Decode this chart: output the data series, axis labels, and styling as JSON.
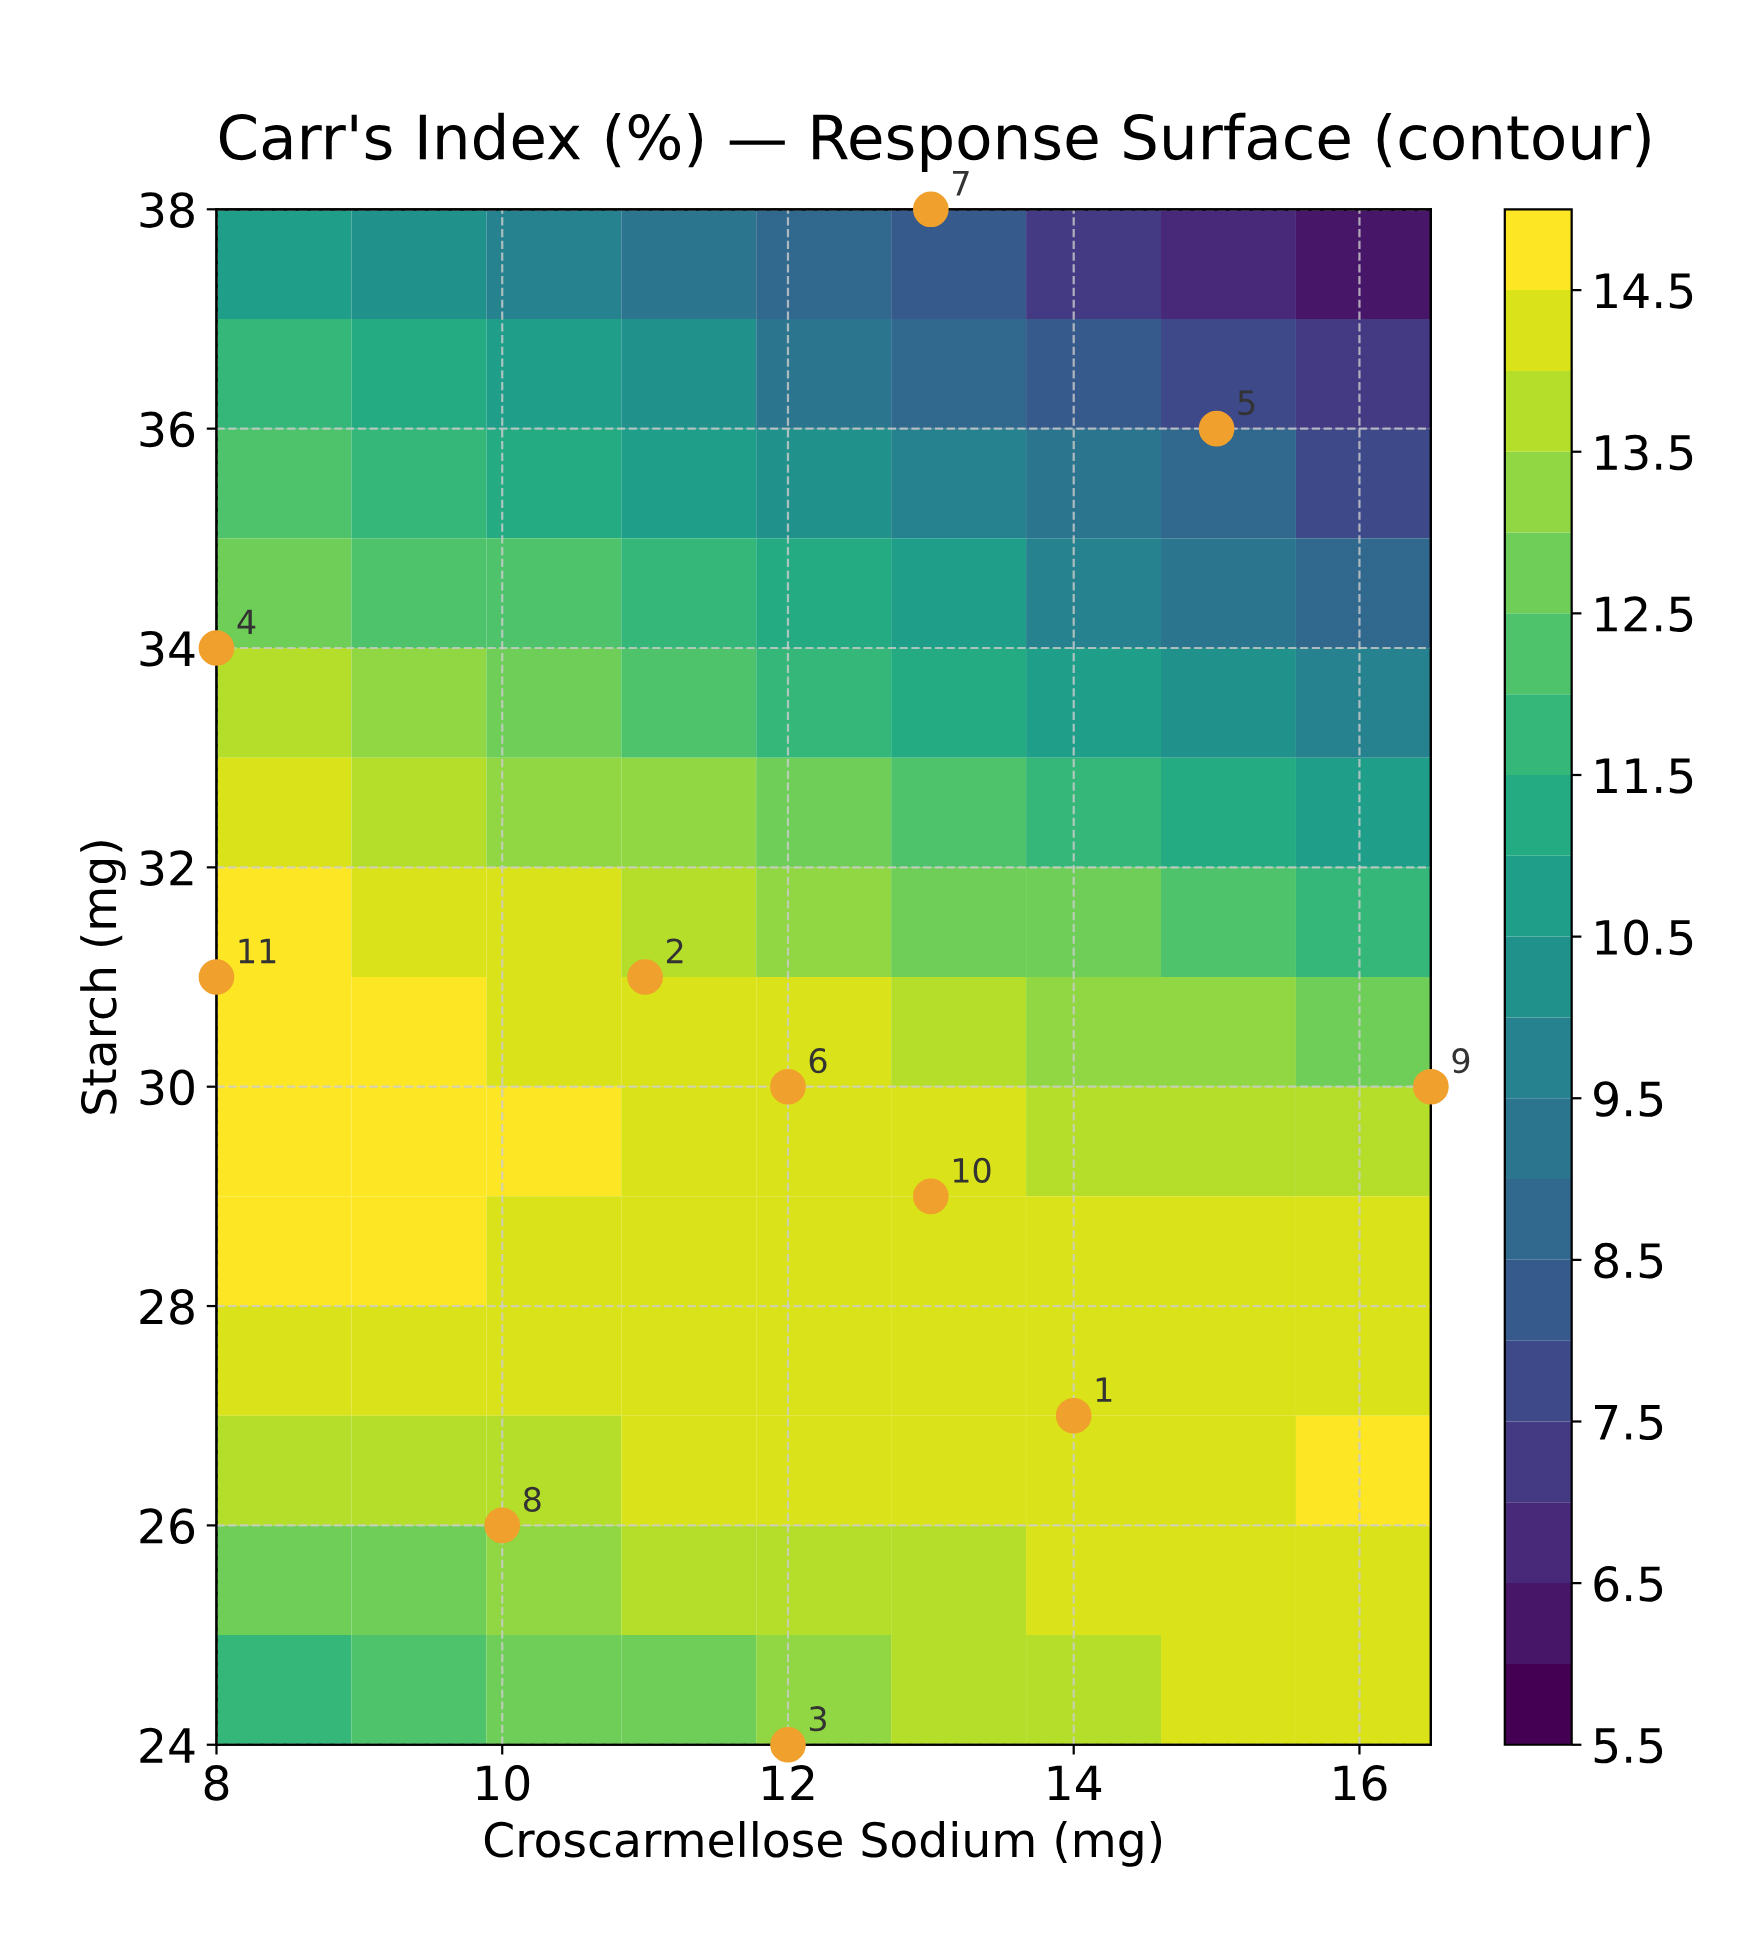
{
  "chart_data": [
    {
      "type": "heatmap",
      "categories": [
        null,
        null,
        null,
        null,
        null,
        null,
        null,
        null,
        null
      ],
      "y_categories": [
        null,
        null,
        null,
        null,
        null,
        null,
        null,
        null,
        null,
        null,
        null,
        null,
        null,
        null
      ],
      "cells": [
        [
          10.8,
          10.3,
          9.8,
          9.3,
          8.7,
          8.0,
          7.4,
          6.8,
          6.2
        ],
        [
          11.5,
          11.0,
          10.5,
          10.0,
          9.4,
          8.8,
          8.2,
          7.6,
          7.0
        ],
        [
          12.2,
          11.7,
          11.2,
          10.7,
          10.2,
          9.6,
          9.0,
          8.5,
          7.9
        ],
        [
          12.9,
          12.4,
          12.0,
          11.5,
          11.0,
          10.5,
          9.9,
          9.4,
          8.9
        ],
        [
          13.6,
          13.1,
          12.7,
          12.2,
          11.8,
          11.3,
          10.8,
          10.3,
          9.9
        ],
        [
          14.2,
          13.8,
          13.4,
          13.0,
          12.6,
          12.2,
          11.8,
          11.3,
          10.9
        ],
        [
          14.6,
          14.3,
          14.0,
          13.7,
          13.3,
          12.9,
          12.6,
          12.2,
          11.9
        ],
        [
          14.9,
          14.7,
          14.4,
          14.2,
          14.0,
          13.7,
          13.4,
          13.1,
          12.8
        ],
        [
          15.0,
          14.9,
          14.7,
          14.4,
          14.3,
          14.1,
          13.9,
          13.7,
          13.5
        ],
        [
          14.7,
          14.6,
          14.4,
          14.3,
          14.2,
          14.1,
          14.1,
          14.0,
          14.1
        ],
        [
          14.3,
          14.3,
          14.2,
          14.2,
          14.2,
          14.2,
          14.2,
          14.3,
          14.4
        ],
        [
          13.5,
          13.7,
          13.8,
          14.0,
          14.1,
          14.2,
          14.3,
          14.4,
          14.6
        ],
        [
          12.7,
          12.9,
          13.2,
          13.5,
          13.7,
          13.9,
          14.1,
          14.2,
          14.3
        ],
        [
          11.7,
          12.1,
          12.5,
          12.9,
          13.3,
          13.6,
          13.8,
          14.0,
          14.1
        ]
      ],
      "clim": [
        5.5,
        15
      ],
      "cticks": [
        5.5,
        6.5,
        7.5,
        8.5,
        9.5,
        10.5,
        11.5,
        12.5,
        13.5,
        14.5
      ],
      "tick_labels": false
    },
    {
      "type": "scatter",
      "title": "Carr's Index (%) — Response Surface (contour)",
      "xlabel": "Croscarmellose Sodium (mg)",
      "ylabel": "Starch (mg)",
      "xlim": [
        8,
        16.5
      ],
      "xticks": [
        8,
        10,
        12,
        14,
        16
      ],
      "ylim": [
        24,
        38
      ],
      "yticks": [
        24,
        26,
        28,
        30,
        32,
        34,
        36,
        38
      ],
      "grid": true,
      "series": [
        {
          "color": "#f0a02c",
          "x": [
            14,
            11,
            12,
            8,
            15,
            12,
            13,
            10,
            16.5,
            13,
            8
          ],
          "values": [
            27,
            31,
            24,
            34,
            36,
            30,
            38,
            26,
            30,
            29,
            31
          ]
        }
      ],
      "annotations": [
        {
          "text": "1",
          "x": 14,
          "y": 27
        },
        {
          "text": "2",
          "x": 11,
          "y": 31
        },
        {
          "text": "3",
          "x": 12,
          "y": 24
        },
        {
          "text": "4",
          "x": 8,
          "y": 34
        },
        {
          "text": "5",
          "x": 15,
          "y": 36
        },
        {
          "text": "6",
          "x": 12,
          "y": 30
        },
        {
          "text": "7",
          "x": 13,
          "y": 38
        },
        {
          "text": "8",
          "x": 10,
          "y": 26
        },
        {
          "text": "9",
          "x": 16.5,
          "y": 30
        },
        {
          "text": "10",
          "x": 13,
          "y": 29
        },
        {
          "text": "11",
          "x": 8,
          "y": 31
        }
      ]
    }
  ]
}
